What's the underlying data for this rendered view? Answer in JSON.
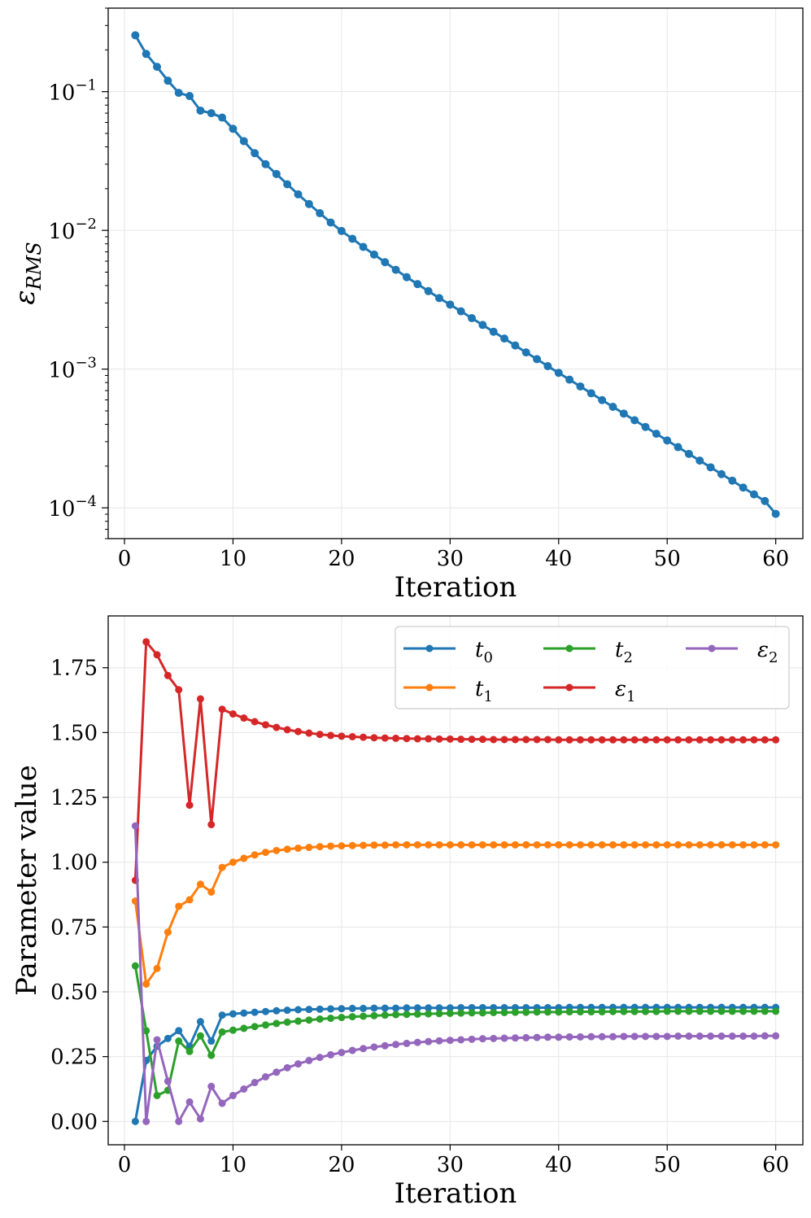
{
  "chart_data": [
    {
      "type": "line",
      "yscale": "log",
      "title": "",
      "xlabel": "Iteration",
      "ylabel": "ε_RMS",
      "ylabel_main": "ε",
      "ylabel_sub": "RMS",
      "xlim": [
        -1.5,
        62.5
      ],
      "ylim": [
        6e-05,
        0.4
      ],
      "xticks": [
        0,
        10,
        20,
        30,
        40,
        50,
        60
      ],
      "yticks": [
        {
          "value": 0.1,
          "base": "10",
          "exp": "−1"
        },
        {
          "value": 0.01,
          "base": "10",
          "exp": "−2"
        },
        {
          "value": 0.001,
          "base": "10",
          "exp": "−3"
        },
        {
          "value": 0.0001,
          "base": "10",
          "exp": "−4"
        }
      ],
      "grid": true,
      "series": [
        {
          "name": "ε_RMS",
          "color": "#1f77b4",
          "x": [
            1,
            2,
            3,
            4,
            5,
            6,
            7,
            8,
            9,
            10,
            11,
            12,
            13,
            14,
            15,
            16,
            17,
            18,
            19,
            20,
            21,
            22,
            23,
            24,
            25,
            26,
            27,
            28,
            29,
            30,
            31,
            32,
            33,
            34,
            35,
            36,
            37,
            38,
            39,
            40,
            41,
            42,
            43,
            44,
            45,
            46,
            47,
            48,
            49,
            50,
            51,
            52,
            53,
            54,
            55,
            56,
            57,
            58,
            59,
            60
          ],
          "values": [
            0.255,
            0.187,
            0.151,
            0.12,
            0.098,
            0.093,
            0.073,
            0.07,
            0.065,
            0.054,
            0.044,
            0.036,
            0.03,
            0.0255,
            0.0215,
            0.0182,
            0.0155,
            0.0133,
            0.0114,
            0.0099,
            0.0087,
            0.0076,
            0.0067,
            0.0059,
            0.0052,
            0.0046,
            0.0041,
            0.00365,
            0.00325,
            0.00292,
            0.00261,
            0.00233,
            0.00208,
            0.00186,
            0.00166,
            0.00148,
            0.00132,
            0.00118,
            0.00105,
            0.00094,
            0.00084,
            0.00075,
            0.00067,
            0.000598,
            0.000535,
            0.000478,
            0.000428,
            0.000383,
            0.000342,
            0.000306,
            0.000274,
            0.000245,
            0.000219,
            0.000196,
            0.000175,
            0.000157,
            0.00014,
            0.000125,
            0.000112,
            9.05e-05
          ]
        }
      ]
    },
    {
      "type": "line",
      "title": "",
      "xlabel": "Iteration",
      "ylabel": "Parameter value",
      "xlim": [
        -1.5,
        62.5
      ],
      "ylim": [
        -0.09,
        1.95
      ],
      "xticks": [
        0,
        10,
        20,
        30,
        40,
        50,
        60
      ],
      "yticks": [
        0.0,
        0.25,
        0.5,
        0.75,
        1.0,
        1.25,
        1.5,
        1.75
      ],
      "ytick_labels": [
        "0.00",
        "0.25",
        "0.50",
        "0.75",
        "1.00",
        "1.25",
        "1.50",
        "1.75"
      ],
      "grid": true,
      "legend": "top-right",
      "series": [
        {
          "name": "t_0",
          "label_main": "t",
          "label_sub": "0",
          "color": "#1f77b4",
          "x": [
            1,
            2,
            3,
            4,
            5,
            6,
            7,
            8,
            9,
            10,
            11,
            12,
            13,
            14,
            15,
            16,
            17,
            18,
            19,
            20,
            21,
            22,
            23,
            24,
            25,
            26,
            27,
            28,
            29,
            30,
            31,
            32,
            33,
            34,
            35,
            36,
            37,
            38,
            39,
            40,
            41,
            42,
            43,
            44,
            45,
            46,
            47,
            48,
            49,
            50,
            51,
            52,
            53,
            54,
            55,
            56,
            57,
            58,
            59,
            60
          ],
          "values": [
            0.0,
            0.235,
            0.29,
            0.32,
            0.35,
            0.29,
            0.385,
            0.31,
            0.41,
            0.415,
            0.418,
            0.421,
            0.424,
            0.427,
            0.429,
            0.431,
            0.432,
            0.433,
            0.434,
            0.435,
            0.436,
            0.436,
            0.437,
            0.437,
            0.437,
            0.438,
            0.438,
            0.438,
            0.438,
            0.438,
            0.439,
            0.439,
            0.439,
            0.439,
            0.439,
            0.439,
            0.439,
            0.439,
            0.439,
            0.439,
            0.44,
            0.44,
            0.44,
            0.44,
            0.44,
            0.44,
            0.44,
            0.44,
            0.44,
            0.44,
            0.44,
            0.44,
            0.44,
            0.44,
            0.44,
            0.44,
            0.44,
            0.44,
            0.44,
            0.44
          ]
        },
        {
          "name": "t_1",
          "label_main": "t",
          "label_sub": "1",
          "color": "#ff7f0e",
          "x": [
            1,
            2,
            3,
            4,
            5,
            6,
            7,
            8,
            9,
            10,
            11,
            12,
            13,
            14,
            15,
            16,
            17,
            18,
            19,
            20,
            21,
            22,
            23,
            24,
            25,
            26,
            27,
            28,
            29,
            30,
            31,
            32,
            33,
            34,
            35,
            36,
            37,
            38,
            39,
            40,
            41,
            42,
            43,
            44,
            45,
            46,
            47,
            48,
            49,
            50,
            51,
            52,
            53,
            54,
            55,
            56,
            57,
            58,
            59,
            60
          ],
          "values": [
            0.85,
            0.53,
            0.59,
            0.73,
            0.83,
            0.855,
            0.915,
            0.885,
            0.98,
            1.0,
            1.015,
            1.028,
            1.038,
            1.045,
            1.05,
            1.054,
            1.057,
            1.06,
            1.062,
            1.063,
            1.064,
            1.065,
            1.066,
            1.066,
            1.067,
            1.067,
            1.067,
            1.067,
            1.067,
            1.067,
            1.067,
            1.067,
            1.067,
            1.067,
            1.067,
            1.067,
            1.067,
            1.067,
            1.067,
            1.067,
            1.067,
            1.067,
            1.067,
            1.067,
            1.067,
            1.067,
            1.067,
            1.067,
            1.067,
            1.067,
            1.067,
            1.067,
            1.067,
            1.067,
            1.067,
            1.067,
            1.067,
            1.067,
            1.067,
            1.067
          ]
        },
        {
          "name": "t_2",
          "label_main": "t",
          "label_sub": "2",
          "color": "#2ca02c",
          "x": [
            1,
            2,
            3,
            4,
            5,
            6,
            7,
            8,
            9,
            10,
            11,
            12,
            13,
            14,
            15,
            16,
            17,
            18,
            19,
            20,
            21,
            22,
            23,
            24,
            25,
            26,
            27,
            28,
            29,
            30,
            31,
            32,
            33,
            34,
            35,
            36,
            37,
            38,
            39,
            40,
            41,
            42,
            43,
            44,
            45,
            46,
            47,
            48,
            49,
            50,
            51,
            52,
            53,
            54,
            55,
            56,
            57,
            58,
            59,
            60
          ],
          "values": [
            0.6,
            0.35,
            0.1,
            0.12,
            0.31,
            0.27,
            0.33,
            0.255,
            0.345,
            0.352,
            0.359,
            0.366,
            0.372,
            0.378,
            0.383,
            0.387,
            0.391,
            0.395,
            0.398,
            0.401,
            0.404,
            0.406,
            0.408,
            0.41,
            0.412,
            0.413,
            0.414,
            0.415,
            0.416,
            0.417,
            0.418,
            0.419,
            0.419,
            0.42,
            0.42,
            0.421,
            0.421,
            0.422,
            0.422,
            0.422,
            0.423,
            0.423,
            0.423,
            0.423,
            0.424,
            0.424,
            0.424,
            0.424,
            0.424,
            0.425,
            0.425,
            0.425,
            0.425,
            0.425,
            0.425,
            0.425,
            0.425,
            0.425,
            0.425,
            0.425
          ]
        },
        {
          "name": "ε_1",
          "label_main": "ε",
          "label_sub": "1",
          "color": "#d62728",
          "x": [
            1,
            2,
            3,
            4,
            5,
            6,
            7,
            8,
            9,
            10,
            11,
            12,
            13,
            14,
            15,
            16,
            17,
            18,
            19,
            20,
            21,
            22,
            23,
            24,
            25,
            26,
            27,
            28,
            29,
            30,
            31,
            32,
            33,
            34,
            35,
            36,
            37,
            38,
            39,
            40,
            41,
            42,
            43,
            44,
            45,
            46,
            47,
            48,
            49,
            50,
            51,
            52,
            53,
            54,
            55,
            56,
            57,
            58,
            59,
            60
          ],
          "values": [
            0.93,
            1.85,
            1.8,
            1.72,
            1.665,
            1.22,
            1.63,
            1.145,
            1.59,
            1.572,
            1.556,
            1.542,
            1.53,
            1.52,
            1.511,
            1.504,
            1.498,
            1.493,
            1.489,
            1.486,
            1.484,
            1.482,
            1.48,
            1.479,
            1.478,
            1.477,
            1.476,
            1.476,
            1.475,
            1.475,
            1.474,
            1.474,
            1.474,
            1.473,
            1.473,
            1.473,
            1.473,
            1.473,
            1.473,
            1.472,
            1.472,
            1.472,
            1.472,
            1.472,
            1.472,
            1.472,
            1.472,
            1.472,
            1.472,
            1.472,
            1.472,
            1.472,
            1.472,
            1.472,
            1.472,
            1.472,
            1.472,
            1.472,
            1.472,
            1.472
          ]
        },
        {
          "name": "ε_2",
          "label_main": "ε",
          "label_sub": "2",
          "color": "#9467bd",
          "x": [
            1,
            2,
            3,
            4,
            5,
            6,
            7,
            8,
            9,
            10,
            11,
            12,
            13,
            14,
            15,
            16,
            17,
            18,
            19,
            20,
            21,
            22,
            23,
            24,
            25,
            26,
            27,
            28,
            29,
            30,
            31,
            32,
            33,
            34,
            35,
            36,
            37,
            38,
            39,
            40,
            41,
            42,
            43,
            44,
            45,
            46,
            47,
            48,
            49,
            50,
            51,
            52,
            53,
            54,
            55,
            56,
            57,
            58,
            59,
            60
          ],
          "values": [
            1.14,
            0.0,
            0.315,
            0.155,
            0.0,
            0.075,
            0.01,
            0.135,
            0.07,
            0.1,
            0.125,
            0.15,
            0.172,
            0.19,
            0.207,
            0.222,
            0.235,
            0.247,
            0.257,
            0.266,
            0.274,
            0.281,
            0.287,
            0.292,
            0.297,
            0.301,
            0.305,
            0.308,
            0.311,
            0.313,
            0.315,
            0.317,
            0.319,
            0.32,
            0.321,
            0.322,
            0.323,
            0.324,
            0.325,
            0.325,
            0.326,
            0.326,
            0.327,
            0.327,
            0.327,
            0.328,
            0.328,
            0.328,
            0.328,
            0.328,
            0.329,
            0.329,
            0.329,
            0.329,
            0.329,
            0.329,
            0.329,
            0.329,
            0.33,
            0.33
          ]
        }
      ]
    }
  ]
}
